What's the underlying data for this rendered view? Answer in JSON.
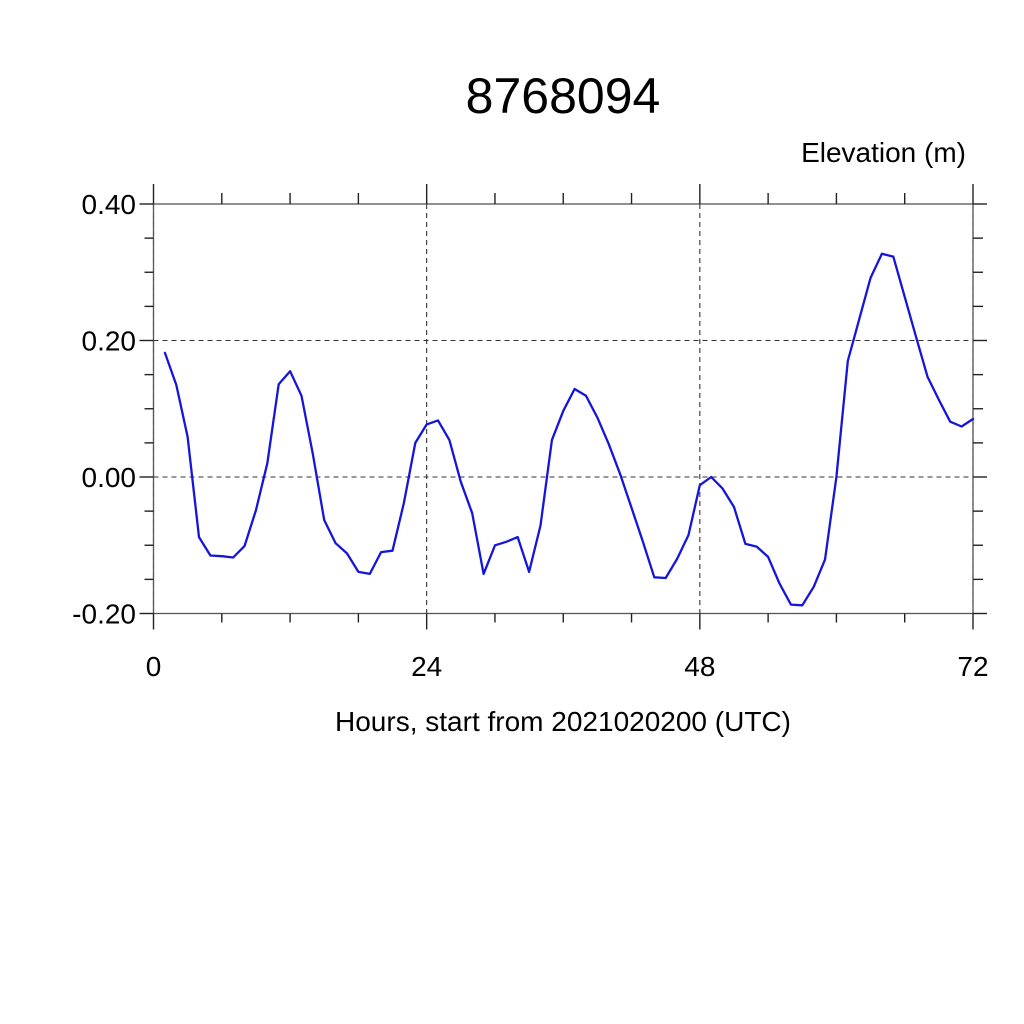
{
  "chart_data": {
    "type": "line",
    "title": "8768094",
    "ylabel": "Elevation (m)",
    "xlabel": "Hours, start from 2021020200 (UTC)",
    "xlim": [
      0,
      72
    ],
    "ylim": [
      -0.2,
      0.4
    ],
    "x_major_ticks": [
      0,
      24,
      48,
      72
    ],
    "x_tick_labels": [
      "0",
      "24",
      "48",
      "72"
    ],
    "x_minor_step": 6,
    "y_major_ticks": [
      0.4,
      0.2,
      0.0,
      -0.2
    ],
    "y_tick_labels": [
      "0.40",
      "0.20",
      "0.00",
      "-0.20"
    ],
    "y_minor_step": 0.05,
    "grid": "dashed on major ticks",
    "legend": "none",
    "line_color": "#1616d9",
    "grid_color": "#333333",
    "frame_color": "#555555",
    "tick_color": "#222222",
    "series": [
      {
        "name": "elevation",
        "x_start": 1,
        "x_step": 1,
        "y": [
          0.182,
          0.135,
          0.059,
          -0.088,
          -0.115,
          -0.116,
          -0.118,
          -0.101,
          -0.049,
          0.02,
          0.136,
          0.155,
          0.119,
          0.034,
          -0.063,
          -0.097,
          -0.112,
          -0.139,
          -0.142,
          -0.11,
          -0.108,
          -0.038,
          0.05,
          0.077,
          0.083,
          0.054,
          -0.007,
          -0.053,
          -0.142,
          -0.1,
          -0.095,
          -0.088,
          -0.139,
          -0.071,
          0.054,
          0.097,
          0.129,
          0.119,
          0.087,
          0.048,
          0.004,
          -0.045,
          -0.095,
          -0.147,
          -0.148,
          -0.12,
          -0.085,
          -0.012,
          0.0,
          -0.017,
          -0.044,
          -0.098,
          -0.102,
          -0.117,
          -0.156,
          -0.187,
          -0.188,
          -0.161,
          -0.121,
          0.0,
          0.17,
          0.231,
          0.292,
          0.327,
          0.323,
          0.264,
          0.205,
          0.147,
          0.113,
          0.081,
          0.074,
          0.085
        ]
      }
    ]
  }
}
